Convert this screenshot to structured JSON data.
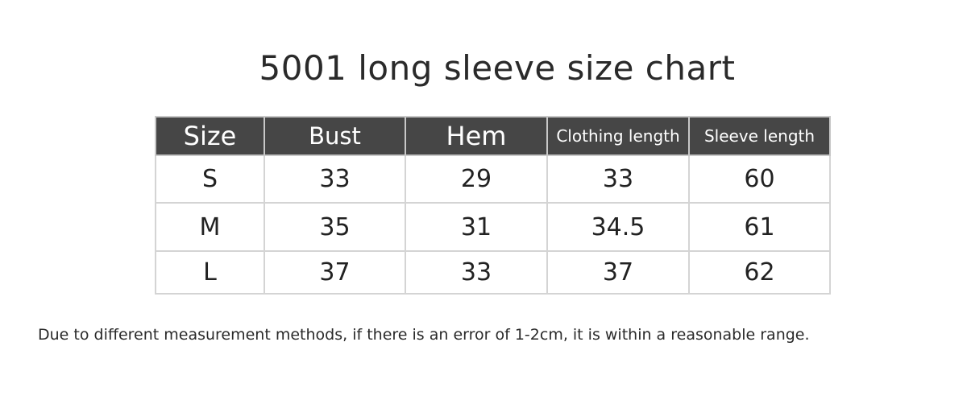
{
  "title": "5001 long sleeve size chart",
  "table": {
    "headers": [
      "Size",
      "Bust",
      "Hem",
      "Clothing length",
      "Sleeve length"
    ],
    "header_bg": "#464646",
    "rows": [
      [
        "S",
        "33",
        "29",
        "33",
        "60"
      ],
      [
        "M",
        "35",
        "31",
        "34.5",
        "61"
      ],
      [
        "L",
        "37",
        "33",
        "37",
        "62"
      ]
    ]
  },
  "note": "Due to different measurement methods, if there is an error of 1-2cm, it is within a reasonable range."
}
